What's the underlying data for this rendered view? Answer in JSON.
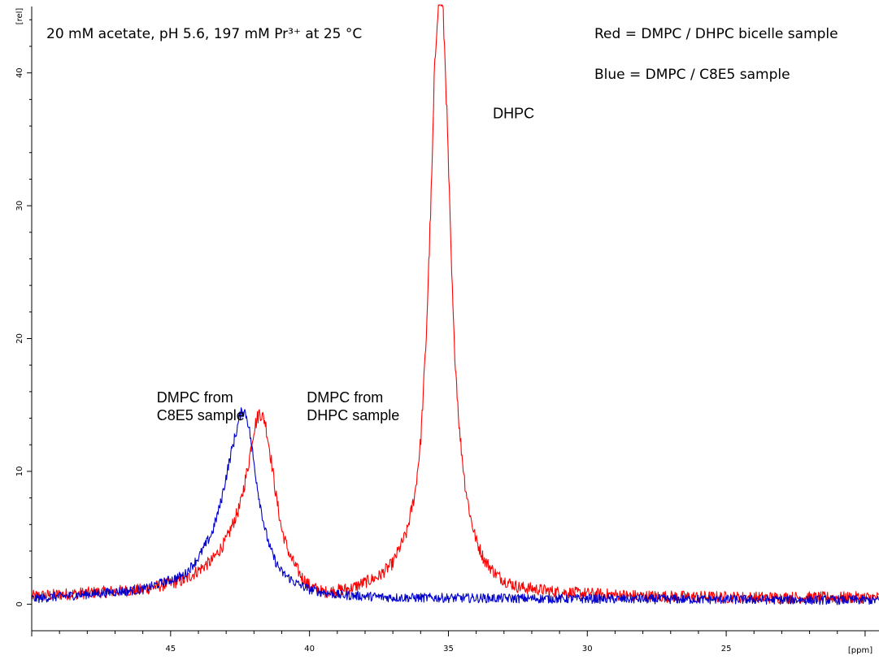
{
  "chart_data": {
    "type": "line",
    "title": "",
    "xlabel": "",
    "ylabel": "",
    "x_unit": "[ppm]",
    "y_unit": "[rel]",
    "xlim": [
      50,
      19.5
    ],
    "ylim": [
      -2,
      45
    ],
    "x_reversed": true,
    "x_ticks": [
      45,
      40,
      35,
      30,
      25
    ],
    "y_ticks": [
      0,
      10,
      20,
      30,
      40
    ],
    "grid": false,
    "condition_text": "20 mM acetate, pH 5.6, 197 mM Pr³⁺ at 25 °C",
    "legend": {
      "placement": "top-right",
      "entries": [
        "Red = DMPC / DHPC bicelle sample",
        "Blue = DMPC / C8E5 sample"
      ]
    },
    "annotations": [
      {
        "lines": [
          "DHPC"
        ],
        "x": 33.4,
        "y": 36.6
      },
      {
        "lines": [
          "DMPC from",
          "C8E5 sample"
        ],
        "x": 45.5,
        "y": 15.2
      },
      {
        "lines": [
          "DMPC from",
          "DHPC sample"
        ],
        "x": 40.1,
        "y": 15.2
      }
    ],
    "series": [
      {
        "name": "DMPC / DHPC bicelle sample",
        "color": "#ff0000",
        "noise": 0.45,
        "x": [
          50,
          46,
          44.5,
          43.5,
          43,
          42.5,
          42.2,
          42,
          41.8,
          41.6,
          41.4,
          41.2,
          41,
          40.7,
          40.3,
          40,
          39.5,
          38.5,
          37.5,
          37,
          36.5,
          36.2,
          36,
          35.8,
          35.6,
          35.5,
          35.4,
          35.3,
          35.2,
          35.1,
          35,
          34.9,
          34.8,
          34.6,
          34.4,
          34.2,
          34,
          33.7,
          33.3,
          33,
          32.5,
          31,
          28,
          24,
          19.5
        ],
        "y": [
          0.6,
          1.1,
          1.8,
          3.3,
          4.8,
          7.4,
          10.5,
          13.2,
          14.5,
          13.8,
          11.2,
          8.1,
          5.6,
          3.6,
          2.1,
          1.4,
          0.9,
          1.2,
          2.1,
          3.1,
          5.4,
          8.4,
          12.2,
          20,
          32,
          40,
          44.5,
          46,
          44.8,
          40,
          33,
          26,
          20,
          13,
          9,
          6.5,
          4.8,
          3.3,
          2.3,
          1.8,
          1.3,
          0.9,
          0.6,
          0.5,
          0.5
        ]
      },
      {
        "name": "DMPC / C8E5 sample",
        "color": "#0000cc",
        "noise": 0.35,
        "x": [
          50,
          46,
          44.5,
          44,
          43.5,
          43.2,
          43,
          42.8,
          42.6,
          42.5,
          42.4,
          42.3,
          42.2,
          42.1,
          42,
          41.8,
          41.6,
          41.4,
          41.2,
          41,
          40.5,
          40,
          39,
          37,
          30,
          19.5
        ],
        "y": [
          0.4,
          1.1,
          2.2,
          3.5,
          5.4,
          7.6,
          9.6,
          11.6,
          13.3,
          14.2,
          14.6,
          14.4,
          13.6,
          12.2,
          10.6,
          7.8,
          5.6,
          4.1,
          3.1,
          2.4,
          1.6,
          1.1,
          0.7,
          0.5,
          0.4,
          0.3
        ]
      }
    ]
  }
}
